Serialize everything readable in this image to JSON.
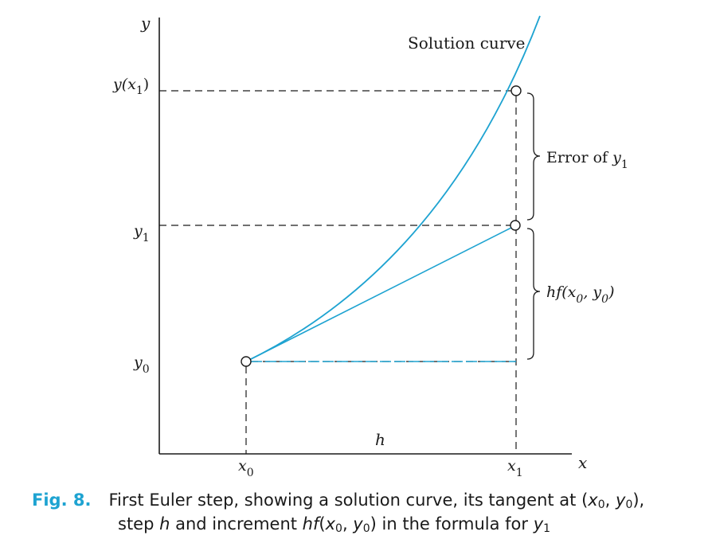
{
  "figure": {
    "axis_labels": {
      "y": "y",
      "x": "x"
    },
    "curve_label": "Solution curve",
    "y_ticks": {
      "yx1_pre": "y(x",
      "yx1_sub": "1",
      "yx1_post": ")",
      "y1": "y",
      "y1_sub": "1",
      "y0": "y",
      "y0_sub": "0"
    },
    "x_ticks": {
      "x0": "x",
      "x0_sub": "0",
      "x1": "x",
      "x1_sub": "1"
    },
    "brace_labels": {
      "error": "Error of ",
      "error_var": "y",
      "error_sub": "1",
      "increment_pre": "hf(x",
      "increment_sub0": "0",
      "increment_mid": ", y",
      "increment_sub1": "0",
      "increment_post": ")"
    },
    "step_label": "h",
    "colors": {
      "curve": "#1ea3d1",
      "axes": "#1a1a1a",
      "caption_accent": "#1ea3d1"
    }
  },
  "caption": {
    "fig_label": "Fig. 8.",
    "line1_a": "First Euler step, showing a solution curve, its tangent at (",
    "line1_x": "x",
    "line1_x_sub": "0",
    "line1_sep": ", ",
    "line1_y": "y",
    "line1_y_sub": "0",
    "line1_end": "),",
    "line2_a": "step ",
    "line2_h": "h",
    "line2_b": " and increment ",
    "line2_hf": "hf",
    "line2_c": "(",
    "line2_x": "x",
    "line2_x_sub": "0",
    "line2_sep": ", ",
    "line2_y": "y",
    "line2_y_sub": "0",
    "line2_d": ") in the formula for ",
    "line2_y1": "y",
    "line2_y1_sub": "1"
  }
}
